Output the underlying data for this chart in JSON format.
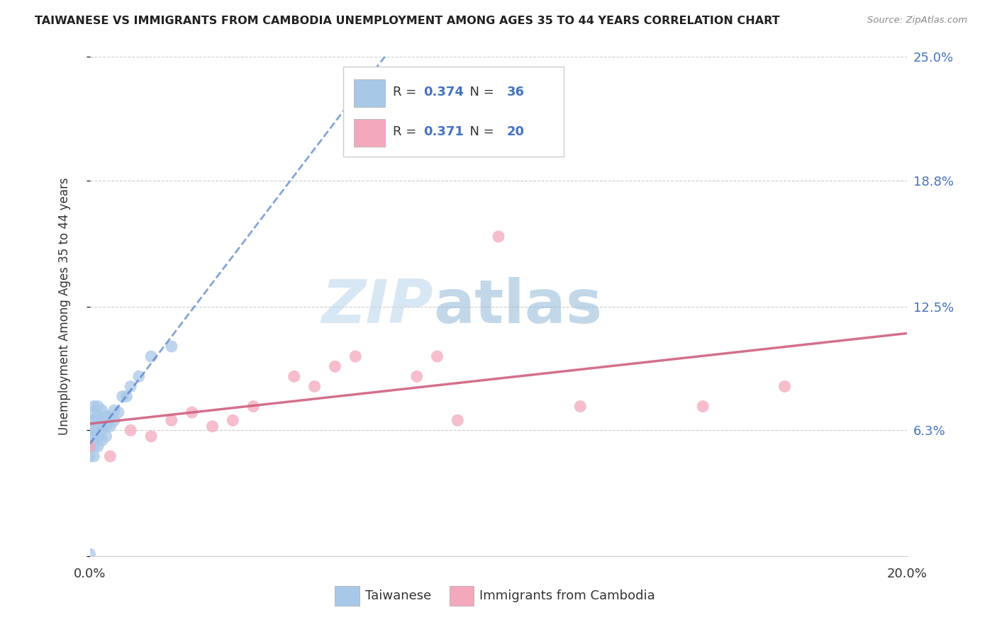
{
  "title": "TAIWANESE VS IMMIGRANTS FROM CAMBODIA UNEMPLOYMENT AMONG AGES 35 TO 44 YEARS CORRELATION CHART",
  "source": "Source: ZipAtlas.com",
  "ylabel": "Unemployment Among Ages 35 to 44 years",
  "xlim": [
    0.0,
    0.2
  ],
  "ylim": [
    0.0,
    0.25
  ],
  "ytick_vals": [
    0.0,
    0.063,
    0.125,
    0.188,
    0.25
  ],
  "ytick_labels": [
    "",
    "6.3%",
    "12.5%",
    "18.8%",
    "25.0%"
  ],
  "xtick_vals": [
    0.0,
    0.05,
    0.1,
    0.15,
    0.2
  ],
  "xtick_labels": [
    "0.0%",
    "",
    "",
    "",
    "20.0%"
  ],
  "watermark_zip": "ZIP",
  "watermark_atlas": "atlas",
  "taiwanese_color": "#a8c8e8",
  "taiwanese_line_color": "#4472c4",
  "cambodian_color": "#f4a8bc",
  "cambodian_line_color": "#d06080",
  "R_tw": "0.374",
  "N_tw": "36",
  "R_cam": "0.371",
  "N_cam": "20",
  "tw_x": [
    0.0,
    0.0,
    0.0,
    0.0,
    0.0,
    0.001,
    0.001,
    0.001,
    0.001,
    0.001,
    0.001,
    0.001,
    0.002,
    0.002,
    0.002,
    0.002,
    0.002,
    0.003,
    0.003,
    0.003,
    0.003,
    0.004,
    0.004,
    0.004,
    0.005,
    0.005,
    0.006,
    0.006,
    0.007,
    0.008,
    0.009,
    0.01,
    0.012,
    0.015,
    0.02,
    0.0
  ],
  "tw_y": [
    0.05,
    0.055,
    0.06,
    0.063,
    0.068,
    0.05,
    0.055,
    0.06,
    0.063,
    0.068,
    0.072,
    0.075,
    0.055,
    0.06,
    0.065,
    0.07,
    0.075,
    0.058,
    0.063,
    0.068,
    0.073,
    0.06,
    0.065,
    0.07,
    0.065,
    0.07,
    0.068,
    0.073,
    0.072,
    0.08,
    0.08,
    0.085,
    0.09,
    0.1,
    0.105,
    0.001
  ],
  "cam_x": [
    0.0,
    0.005,
    0.01,
    0.015,
    0.02,
    0.025,
    0.03,
    0.035,
    0.04,
    0.05,
    0.055,
    0.06,
    0.065,
    0.08,
    0.085,
    0.09,
    0.1,
    0.12,
    0.15,
    0.17
  ],
  "cam_y": [
    0.055,
    0.05,
    0.063,
    0.06,
    0.068,
    0.072,
    0.065,
    0.068,
    0.075,
    0.09,
    0.085,
    0.095,
    0.1,
    0.09,
    0.1,
    0.068,
    0.16,
    0.075,
    0.075,
    0.085
  ]
}
